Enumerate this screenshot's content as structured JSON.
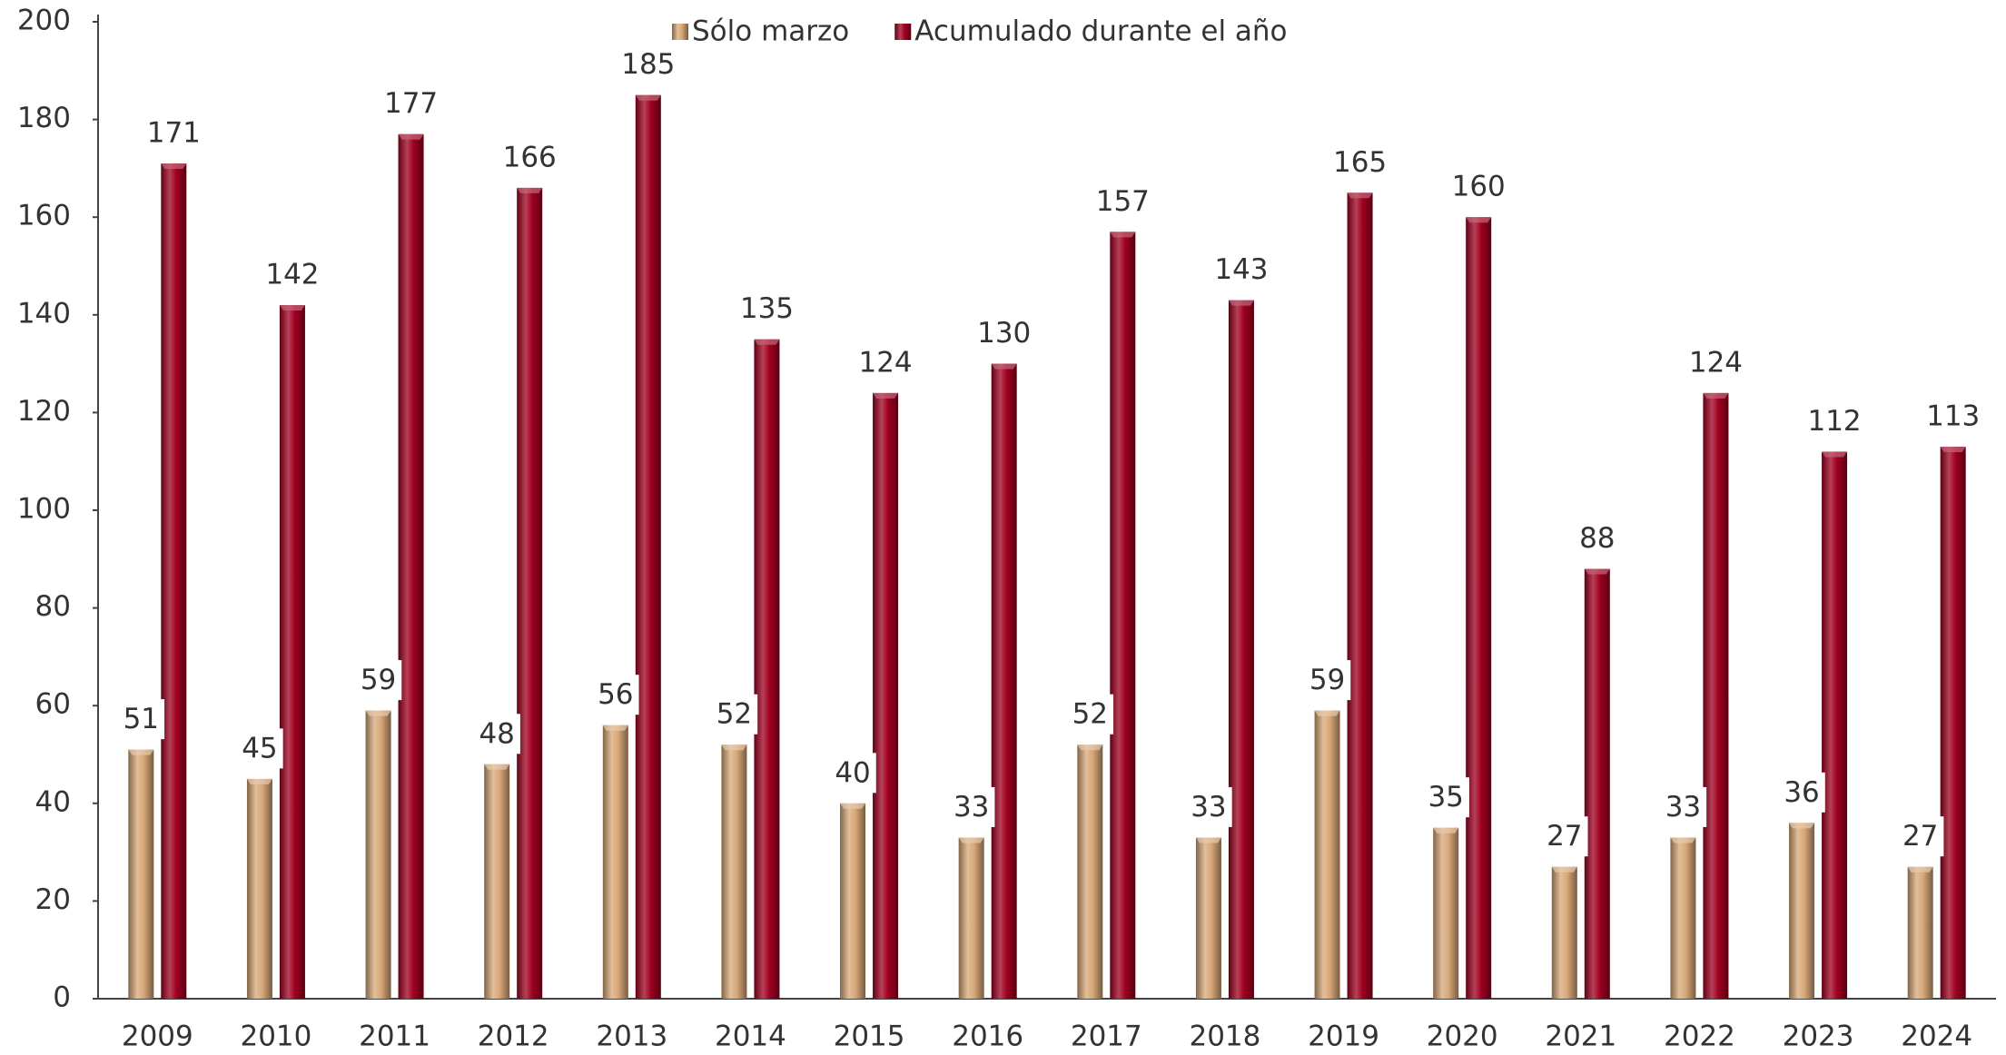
{
  "chart_data": {
    "type": "bar",
    "categories": [
      "2009",
      "2010",
      "2011",
      "2012",
      "2013",
      "2014",
      "2015",
      "2016",
      "2017",
      "2018",
      "2019",
      "2020",
      "2021",
      "2022",
      "2023",
      "2024"
    ],
    "series": [
      {
        "name": "Sólo marzo",
        "color": "#d8a878",
        "values": [
          51,
          45,
          59,
          48,
          56,
          52,
          40,
          33,
          52,
          33,
          59,
          35,
          27,
          33,
          36,
          27
        ]
      },
      {
        "name": "Acumulado durante el año",
        "color": "#a00020",
        "values": [
          171,
          142,
          177,
          166,
          185,
          135,
          124,
          130,
          157,
          143,
          165,
          160,
          88,
          124,
          112,
          113
        ]
      }
    ],
    "ylim": [
      0,
      200
    ],
    "yticks": [
      0,
      20,
      40,
      60,
      80,
      100,
      120,
      140,
      160,
      180,
      200
    ],
    "grid": false,
    "legend": "top"
  }
}
